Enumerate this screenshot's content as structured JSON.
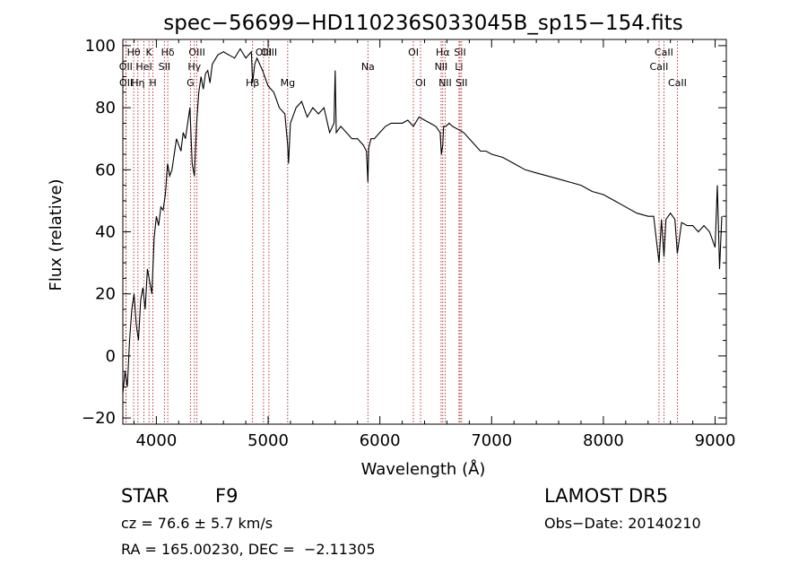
{
  "chart_data": {
    "type": "line",
    "title": "spec−56699−HD110236S033045B_sp15−154.fits",
    "xlabel": "Wavelength (Å)",
    "ylabel": "Flux (relative)",
    "xlim": [
      3700,
      9100
    ],
    "ylim": [
      -22,
      102
    ],
    "x_ticks": [
      4000,
      5000,
      6000,
      7000,
      8000,
      9000
    ],
    "x_tick_labels": [
      "4000",
      "5000",
      "6000",
      "7000",
      "8000",
      "9000"
    ],
    "y_ticks": [
      -20,
      0,
      20,
      40,
      60,
      80,
      100
    ],
    "y_tick_labels": [
      "−20",
      "0",
      "20",
      "40",
      "60",
      "80",
      "100"
    ],
    "grid": false,
    "line_color": "#000000",
    "marker_color": "#b22222",
    "series": [
      {
        "x": [
          3700,
          3720,
          3740,
          3760,
          3780,
          3800,
          3820,
          3840,
          3860,
          3880,
          3900,
          3920,
          3940,
          3960,
          3980,
          4000,
          4020,
          4040,
          4060,
          4080,
          4100,
          4120,
          4140,
          4160,
          4180,
          4200,
          4220,
          4240,
          4260,
          4280,
          4300,
          4320,
          4340,
          4360,
          4380,
          4400,
          4420,
          4440,
          4460,
          4480,
          4500,
          4550,
          4600,
          4650,
          4700,
          4750,
          4800,
          4850,
          4861,
          4880,
          4900,
          4950,
          5000,
          5050,
          5100,
          5150,
          5175,
          5183,
          5200,
          5250,
          5300,
          5350,
          5400,
          5450,
          5500,
          5550,
          5590,
          5600,
          5610,
          5650,
          5700,
          5750,
          5800,
          5850,
          5880,
          5893,
          5900,
          5920,
          5950,
          6000,
          6050,
          6100,
          6150,
          6200,
          6250,
          6300,
          6350,
          6400,
          6450,
          6500,
          6540,
          6550,
          6563,
          6570,
          6590,
          6620,
          6650,
          6700,
          6750,
          6800,
          6850,
          6900,
          6950,
          7000,
          7100,
          7200,
          7300,
          7400,
          7500,
          7600,
          7700,
          7800,
          7900,
          8000,
          8100,
          8200,
          8300,
          8400,
          8450,
          8498,
          8520,
          8542,
          8560,
          8600,
          8640,
          8662,
          8700,
          8750,
          8800,
          8850,
          8900,
          8950,
          9000,
          9020,
          9040,
          9060
        ],
        "y": [
          -12,
          -5,
          -10,
          5,
          15,
          20,
          10,
          5,
          18,
          22,
          15,
          28,
          24,
          20,
          38,
          45,
          42,
          48,
          47,
          52,
          62,
          58,
          60,
          65,
          70,
          68,
          66,
          72,
          70,
          75,
          80,
          62,
          58,
          75,
          85,
          90,
          86,
          91,
          92,
          88,
          94,
          97,
          98,
          97,
          96,
          99,
          96,
          98,
          88,
          94,
          96,
          92,
          87,
          85,
          80,
          78,
          68,
          62,
          75,
          80,
          82,
          77,
          80,
          78,
          80,
          72,
          75,
          92,
          72,
          74,
          72,
          70,
          70,
          68,
          66,
          56,
          67,
          70,
          70,
          72,
          74,
          75,
          75,
          75,
          76,
          74,
          77,
          76,
          75,
          74,
          72,
          65,
          68,
          74,
          74,
          75,
          74,
          73,
          72,
          70,
          68,
          66,
          66,
          65,
          64,
          62,
          60,
          59,
          58,
          57,
          56,
          55,
          53,
          52,
          50,
          48,
          46,
          45,
          45,
          30,
          44,
          32,
          44,
          46,
          44,
          33,
          43,
          42,
          42,
          40,
          42,
          40,
          35,
          55,
          28,
          45
        ]
      }
    ],
    "line_markers": [
      {
        "label": "Hθ",
        "x": 3797,
        "row": 1
      },
      {
        "label": "OII",
        "x": 3727,
        "row": 2
      },
      {
        "label": "OII",
        "x": 3729,
        "row": 3
      },
      {
        "label": "K",
        "x": 3934,
        "row": 1
      },
      {
        "label": "HeI",
        "x": 3889,
        "row": 2
      },
      {
        "label": "Hη",
        "x": 3835,
        "row": 3
      },
      {
        "label": "H",
        "x": 3969,
        "row": 3
      },
      {
        "label": "Hδ",
        "x": 4102,
        "row": 1
      },
      {
        "label": "SII",
        "x": 4072,
        "row": 2
      },
      {
        "label": "OIII",
        "x": 4363,
        "row": 1
      },
      {
        "label": "Hγ",
        "x": 4340,
        "row": 2
      },
      {
        "label": "G",
        "x": 4305,
        "row": 3
      },
      {
        "label": "OIII",
        "x": 4959,
        "row": 1
      },
      {
        "label": "OIII",
        "x": 5007,
        "row": 1
      },
      {
        "label": "Hβ",
        "x": 4861,
        "row": 3
      },
      {
        "label": "Mg",
        "x": 5175,
        "row": 3
      },
      {
        "label": "Na",
        "x": 5893,
        "row": 2
      },
      {
        "label": "OI",
        "x": 6300,
        "row": 1
      },
      {
        "label": "OI",
        "x": 6364,
        "row": 3
      },
      {
        "label": "Hα",
        "x": 6563,
        "row": 1
      },
      {
        "label": "NII",
        "x": 6548,
        "row": 2
      },
      {
        "label": "NII",
        "x": 6584,
        "row": 3
      },
      {
        "label": "SII",
        "x": 6717,
        "row": 1
      },
      {
        "label": "Li",
        "x": 6708,
        "row": 2
      },
      {
        "label": "SII",
        "x": 6731,
        "row": 3
      },
      {
        "label": "CaII",
        "x": 8542,
        "row": 1
      },
      {
        "label": "CaII",
        "x": 8498,
        "row": 2
      },
      {
        "label": "CaII",
        "x": 8662,
        "row": 3
      }
    ]
  },
  "info": {
    "object_class": "STAR",
    "subclass": "F9",
    "survey": "LAMOST DR5",
    "redshift": "cz = 76.6 ± 5.7 km/s",
    "obs_date": "Obs−Date: 20140210",
    "coordinates": "RA = 165.00230, DEC =  −2.11305"
  }
}
